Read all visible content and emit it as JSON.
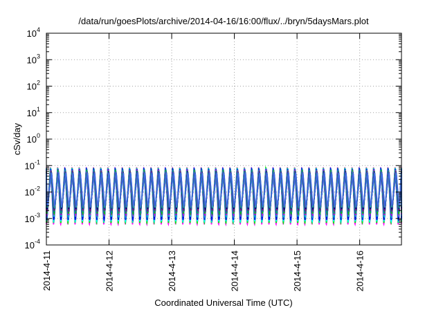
{
  "chart_data": {
    "type": "line",
    "title": "/data/run/goesPlots/archive/2014-04-16/16:00/flux/../bryn/5daysMars.plot",
    "xlabel": "Coordinated Universal Time (UTC)",
    "ylabel": "cSv/day",
    "y_scale": "log",
    "ylim": [
      0.0001,
      10000
    ],
    "y_ticks": [
      {
        "base": "10",
        "exp": "-4"
      },
      {
        "base": "10",
        "exp": "-3"
      },
      {
        "base": "10",
        "exp": "-2"
      },
      {
        "base": "10",
        "exp": "-1"
      },
      {
        "base": "10",
        "exp": "0"
      },
      {
        "base": "10",
        "exp": "1"
      },
      {
        "base": "10",
        "exp": "2"
      },
      {
        "base": "10",
        "exp": "3"
      },
      {
        "base": "10",
        "exp": "4"
      }
    ],
    "xlim": [
      "2014-04-11",
      "2014-04-16T16:00"
    ],
    "x_ticks": [
      "2014-4-11",
      "2014-4-12",
      "2014-4-13",
      "2014-4-14",
      "2014-4-15",
      "2014-4-16"
    ],
    "grid": true,
    "colors": [
      "#ff00ff",
      "#00ff00",
      "#00ffff",
      "#0000ff",
      "#0000cd",
      "#00cdcd",
      "#cd00cd",
      "#00cd00",
      "#008b8b",
      "#8b008b",
      "#000080",
      "#20b2aa",
      "#4169e1"
    ],
    "oscillation": {
      "period_hours": 2.75,
      "top_range": [
        0.05,
        0.085
      ],
      "bottom_range": [
        0.0006,
        0.003
      ]
    }
  }
}
